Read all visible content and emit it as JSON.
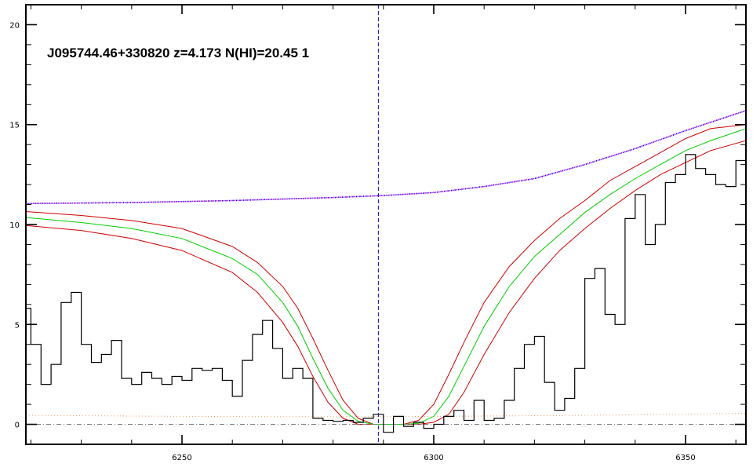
{
  "chart_data": {
    "type": "line",
    "title": "J095744.46+330820 z=4.173 N(HI)=20.45 1",
    "xlabel": "",
    "ylabel": "",
    "xlim": [
      6219,
      6362
    ],
    "ylim": [
      -1,
      21
    ],
    "x_ticks": [
      6250,
      6300,
      6350
    ],
    "y_ticks": [
      0,
      5,
      10,
      15,
      20
    ],
    "grid": false,
    "legend": "none",
    "vline_x": 6289,
    "colors": {
      "flux": "#000000",
      "fit": "#00cc00",
      "fit_bounds": "#cc0000",
      "continuum": "#0000ee",
      "continuum_alt": "#dd00dd",
      "error": "#e8a060",
      "zero": "#777777",
      "vline": "#0000cc"
    },
    "series": [
      {
        "style": "step",
        "x": [
          6219,
          6221,
          6223,
          6225,
          6227,
          6229,
          6231,
          6233,
          6235,
          6237,
          6239,
          6241,
          6243,
          6245,
          6247,
          6249,
          6251,
          6253,
          6255,
          6257,
          6259,
          6261,
          6263,
          6265,
          6267,
          6269,
          6271,
          6273,
          6275,
          6277,
          6279,
          6281,
          6283,
          6285,
          6287,
          6289,
          6291,
          6293,
          6295,
          6297,
          6299,
          6301,
          6303,
          6305,
          6307,
          6309,
          6311,
          6313,
          6315,
          6317,
          6319,
          6321,
          6323,
          6325,
          6327,
          6329,
          6331,
          6333,
          6335,
          6337,
          6339,
          6341,
          6343,
          6345,
          6347,
          6349,
          6351,
          6353,
          6355,
          6357,
          6359,
          6361
        ],
        "y": [
          5.8,
          4.0,
          2.0,
          3.0,
          6.1,
          6.6,
          4.0,
          3.1,
          3.5,
          4.2,
          2.3,
          2.0,
          2.6,
          2.3,
          2.0,
          2.4,
          2.2,
          2.8,
          2.7,
          2.8,
          2.2,
          1.4,
          3.2,
          4.5,
          5.2,
          3.8,
          2.3,
          2.8,
          2.3,
          0.3,
          0.2,
          0.15,
          0.2,
          0.1,
          0.3,
          0.5,
          -0.4,
          0.4,
          -0.1,
          0.1,
          -0.2,
          0.0,
          0.4,
          0.7,
          0.2,
          1.2,
          0.2,
          0.3,
          1.2,
          2.8,
          4.0,
          4.4,
          2.1,
          0.7,
          1.3,
          2.8,
          7.3,
          7.8,
          5.5,
          5.0,
          10.3,
          11.5,
          9.0,
          10.0,
          12.1,
          12.5,
          13.5,
          12.8,
          12.5,
          12.0,
          11.9,
          13.2
        ]
      },
      {
        "style": "line",
        "x": [
          6219,
          6230,
          6240,
          6250,
          6260,
          6265,
          6270,
          6273,
          6276,
          6279,
          6282,
          6285,
          6288,
          6291,
          6294,
          6297,
          6300,
          6303,
          6306,
          6310,
          6315,
          6320,
          6325,
          6330,
          6335,
          6340,
          6345,
          6350,
          6355,
          6362
        ],
        "y": [
          10.35,
          10.1,
          9.8,
          9.3,
          8.3,
          7.5,
          6.1,
          4.9,
          3.3,
          1.8,
          0.7,
          0.15,
          0.0,
          0.0,
          0.0,
          0.05,
          0.4,
          1.4,
          2.9,
          4.9,
          6.9,
          8.4,
          9.5,
          10.6,
          11.5,
          12.3,
          13.0,
          13.7,
          14.2,
          14.8
        ]
      },
      {
        "style": "line",
        "x": [
          6219,
          6230,
          6240,
          6250,
          6260,
          6265,
          6270,
          6273,
          6276,
          6279,
          6282,
          6285,
          6288,
          6291,
          6294,
          6297,
          6300,
          6303,
          6306,
          6310,
          6315,
          6320,
          6325,
          6330,
          6335,
          6340,
          6345,
          6350,
          6355,
          6362
        ],
        "y": [
          10.65,
          10.45,
          10.2,
          9.8,
          8.9,
          8.1,
          6.9,
          5.8,
          4.3,
          2.7,
          1.2,
          0.3,
          0.0,
          0.0,
          0.0,
          0.2,
          1.0,
          2.5,
          4.1,
          6.1,
          7.9,
          9.2,
          10.3,
          11.2,
          12.2,
          12.9,
          13.6,
          14.3,
          14.8,
          15.0
        ]
      },
      {
        "style": "line",
        "x": [
          6219,
          6230,
          6240,
          6250,
          6260,
          6265,
          6270,
          6273,
          6276,
          6279,
          6282,
          6285,
          6288,
          6291,
          6294,
          6297,
          6300,
          6303,
          6306,
          6310,
          6315,
          6320,
          6325,
          6330,
          6335,
          6340,
          6345,
          6350,
          6355,
          6362
        ],
        "y": [
          9.95,
          9.7,
          9.3,
          8.7,
          7.6,
          6.6,
          5.1,
          3.9,
          2.4,
          1.1,
          0.3,
          0.0,
          0.0,
          0.0,
          0.0,
          0.0,
          0.1,
          0.5,
          1.6,
          3.5,
          5.6,
          7.3,
          8.7,
          9.8,
          10.8,
          11.7,
          12.5,
          13.1,
          13.7,
          14.2
        ]
      },
      {
        "style": "dotted",
        "x": [
          6219,
          6240,
          6260,
          6280,
          6290,
          6300,
          6310,
          6320,
          6330,
          6340,
          6350,
          6362
        ],
        "y": [
          11.05,
          11.1,
          11.2,
          11.35,
          11.45,
          11.6,
          11.9,
          12.3,
          13.0,
          13.8,
          14.7,
          15.7
        ]
      },
      {
        "style": "dotted-sparse",
        "x": [
          6219,
          6250,
          6280,
          6300,
          6330,
          6362
        ],
        "y": [
          0.45,
          0.4,
          0.38,
          0.4,
          0.45,
          0.55
        ]
      },
      {
        "style": "dashdot",
        "x": [
          6219,
          6362
        ],
        "y": [
          0,
          0
        ]
      }
    ]
  }
}
